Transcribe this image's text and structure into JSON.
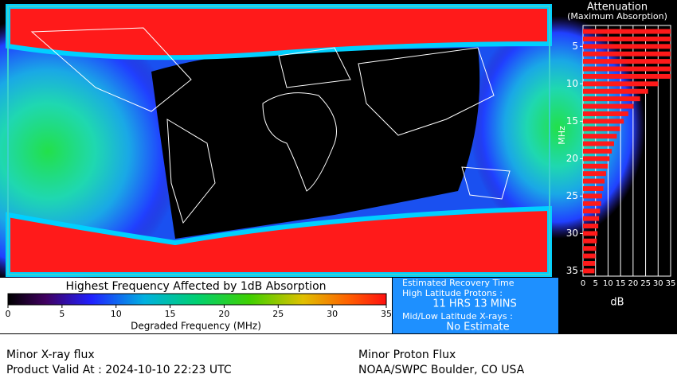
{
  "map": {
    "type": "absorption-map"
  },
  "colorbar": {
    "title": "Highest Frequency Affected by 1dB Absorption",
    "xlabel": "Degraded Frequency (MHz)",
    "xlim": [
      0,
      35
    ],
    "xticks": [
      0,
      5,
      10,
      15,
      20,
      25,
      30,
      35
    ]
  },
  "recovery": {
    "title": "Estimated Recovery Time",
    "protons_label": "High Latitude Protons :",
    "protons_value": "11 HRS 13 MINS",
    "xray_label": "Mid/Low Latitude X-rays :",
    "xray_value": "No Estimate"
  },
  "attenuation": {
    "title": "Attenuation",
    "subtitle": "(Maximum Absorption)",
    "ylabel": "MHz",
    "xlabel": "dB",
    "ylim": [
      2.2,
      35.7
    ],
    "yticks": [
      5,
      10,
      15,
      20,
      25,
      30,
      35
    ],
    "xlim": [
      0,
      35
    ],
    "xticks": [
      0,
      5,
      10,
      15,
      20,
      25,
      30,
      35
    ],
    "frequencies": [
      3,
      4,
      5,
      6,
      7,
      8,
      9,
      10,
      11,
      12,
      13,
      14,
      15,
      16,
      17,
      18,
      19,
      20,
      21,
      22,
      23,
      24,
      25,
      26,
      27,
      28,
      29,
      30,
      31,
      32,
      33,
      34,
      35
    ],
    "values": [
      35,
      35,
      35,
      35,
      35,
      35,
      35,
      30,
      26.0,
      22.8,
      20.2,
      18.1,
      16.3,
      14.8,
      13.5,
      12.4,
      11.5,
      10.6,
      9.9,
      9.2,
      8.6,
      8.1,
      7.6,
      7.2,
      6.8,
      6.4,
      6.1,
      5.8,
      5.5,
      5.2,
      5.0,
      4.8,
      4.6
    ]
  },
  "footer": {
    "xray": "Minor X-ray flux",
    "valid": "Product Valid At : 2024-10-10 22:23 UTC",
    "proton": "Minor Proton Flux",
    "source": "NOAA/SWPC Boulder, CO USA"
  }
}
